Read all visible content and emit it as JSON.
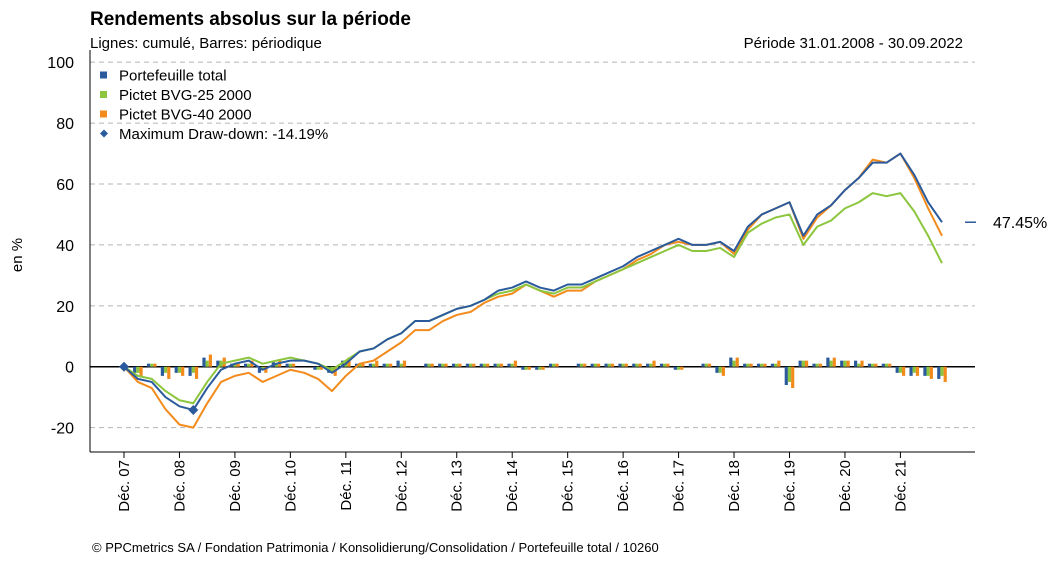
{
  "chart_data": {
    "type": "line_bar",
    "title": "Rendements absolus sur la période",
    "subtitle": "Lignes: cumulé, Barres: périodique",
    "period": "Période 31.01.2008 - 30.09.2022",
    "y_label": "en %",
    "source": "© PPCmetrics SA / Fondation Patrimonia / Konsolidierung/Consolidation / Portefeuille total / 10260",
    "categories": [
      "Déc. 07",
      null,
      null,
      null,
      "Déc. 08",
      null,
      null,
      null,
      "Déc. 09",
      null,
      null,
      null,
      "Déc. 10",
      null,
      null,
      null,
      "Déc. 11",
      null,
      null,
      null,
      "Déc. 12",
      null,
      null,
      null,
      "Déc. 13",
      null,
      null,
      null,
      "Déc. 14",
      null,
      null,
      null,
      "Déc. 15",
      null,
      null,
      null,
      "Déc. 16",
      null,
      null,
      null,
      "Déc. 17",
      null,
      null,
      null,
      "Déc. 18",
      null,
      null,
      null,
      "Déc. 19",
      null,
      null,
      null,
      "Déc. 20",
      null,
      null,
      null,
      "Déc. 21",
      null,
      null,
      null
    ],
    "ylim": [
      -28,
      104
    ],
    "yticks": [
      -20,
      0,
      20,
      40,
      60,
      80,
      100
    ],
    "grid": true,
    "legend": "top-left",
    "series": [
      {
        "name": "Portefeuille total",
        "color": "#2b5b9c",
        "values": [
          0,
          -4,
          -5,
          -10,
          -13,
          -14.19,
          -7,
          -1,
          1,
          2,
          -1,
          1,
          2,
          2,
          1,
          -2,
          1,
          5,
          6,
          9,
          11,
          15,
          15,
          17,
          19,
          20,
          22,
          25,
          26,
          28,
          26,
          25,
          27,
          27,
          29,
          31,
          33,
          36,
          38,
          40,
          42,
          40,
          40,
          41,
          38,
          46,
          50,
          52,
          54,
          43,
          50,
          53,
          58,
          62,
          67,
          67,
          70,
          63,
          54,
          47.45
        ],
        "period_values": [
          0,
          -2,
          1,
          -3,
          -2,
          -3,
          3,
          2,
          1,
          1,
          -2,
          2,
          1,
          0,
          -1,
          -2,
          2,
          1,
          1,
          1,
          2,
          0,
          1,
          1,
          1,
          1,
          1,
          1,
          1,
          -1,
          -1,
          1,
          0,
          1,
          1,
          1,
          1,
          1,
          1,
          1,
          -1,
          0,
          1,
          -2,
          3,
          1,
          1,
          1,
          -6,
          2,
          1,
          3,
          2,
          2,
          1,
          1,
          -2,
          -3,
          -3,
          -4
        ]
      },
      {
        "name": "Pictet BVG-25 2000",
        "color": "#8cc63e",
        "values": [
          0,
          -3,
          -4,
          -8,
          -11,
          -12,
          -5,
          1,
          2,
          3,
          1,
          2,
          3,
          2,
          1,
          -1,
          2,
          5,
          6,
          9,
          11,
          15,
          15,
          17,
          19,
          20,
          22,
          24,
          25,
          27,
          25,
          24,
          26,
          26,
          28,
          30,
          32,
          34,
          36,
          38,
          40,
          38,
          38,
          39,
          36,
          44,
          47,
          49,
          50,
          40,
          46,
          48,
          52,
          54,
          57,
          56,
          57,
          51,
          43,
          34
        ],
        "period_values": [
          0,
          -2,
          1,
          -2,
          -2,
          -2,
          2,
          2,
          1,
          1,
          -1,
          1,
          1,
          0,
          -1,
          -2,
          2,
          1,
          1,
          1,
          1,
          0,
          1,
          1,
          1,
          1,
          1,
          1,
          1,
          -1,
          -1,
          1,
          0,
          1,
          1,
          1,
          1,
          1,
          1,
          1,
          -1,
          0,
          1,
          -2,
          2,
          1,
          1,
          1,
          -5,
          2,
          1,
          2,
          2,
          1,
          1,
          1,
          -2,
          -2,
          -3,
          -3
        ]
      },
      {
        "name": "Pictet BVG-40 2000",
        "color": "#f38b1c",
        "values": [
          0,
          -5,
          -7,
          -14,
          -19,
          -20,
          -12,
          -5,
          -3,
          -2,
          -5,
          -3,
          -1,
          -2,
          -4,
          -8,
          -3,
          1,
          2,
          5,
          8,
          12,
          12,
          15,
          17,
          18,
          21,
          23,
          24,
          27,
          25,
          23,
          25,
          25,
          28,
          30,
          32,
          35,
          37,
          40,
          41,
          40,
          40,
          41,
          37,
          45,
          50,
          52,
          54,
          42,
          49,
          53,
          58,
          62,
          68,
          67,
          70,
          62,
          52,
          43
        ],
        "period_values": [
          0,
          -3,
          1,
          -4,
          -3,
          -4,
          4,
          3,
          1,
          2,
          -2,
          2,
          1,
          0,
          -1,
          -3,
          3,
          1,
          2,
          1,
          2,
          0,
          1,
          1,
          1,
          1,
          1,
          1,
          2,
          -1,
          -1,
          1,
          0,
          1,
          1,
          1,
          1,
          1,
          2,
          1,
          -1,
          0,
          1,
          -3,
          3,
          1,
          1,
          2,
          -7,
          2,
          1,
          3,
          2,
          2,
          1,
          1,
          -3,
          -3,
          -4,
          -5
        ]
      }
    ],
    "drawdown": {
      "name": "Maximum Draw-down: -14.19%",
      "color": "#2b5b9c",
      "start": 0,
      "trough": -14.19
    },
    "last_value_label": "47.45%"
  }
}
